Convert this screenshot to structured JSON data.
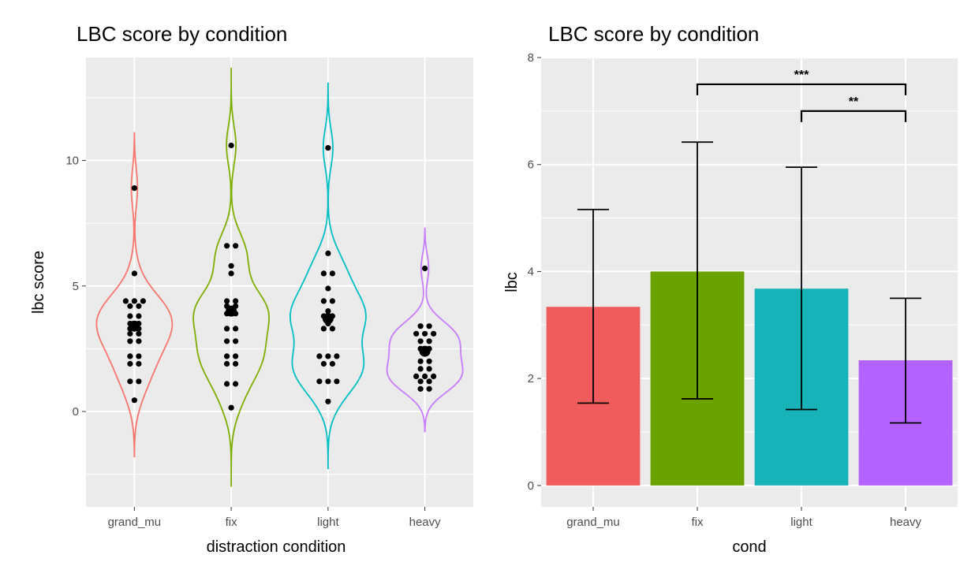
{
  "colors": {
    "grand_mu": "#F8766D",
    "fix": "#7CAE00",
    "light": "#00BFC4",
    "heavy": "#C77CFF",
    "bar_grand_mu": "#F05B5B",
    "bar_fix": "#6AA300",
    "bar_light": "#17B3B8",
    "bar_heavy": "#B462FF",
    "panel": "#EBEBEB",
    "grid": "#ffffff"
  },
  "chart_data": [
    {
      "type": "violin",
      "title": "LBC score by condition",
      "xlabel": "distraction condition",
      "ylabel": "lbc score",
      "categories": [
        "grand_mu",
        "fix",
        "light",
        "heavy"
      ],
      "yticks": [
        0,
        5,
        10
      ],
      "ylim": [
        -3.8,
        14.1
      ],
      "means": [
        3.4,
        4.0,
        3.7,
        2.4
      ],
      "ranges": [
        [
          -1.8,
          11.1
        ],
        [
          -3.0,
          13.7
        ],
        [
          -2.3,
          13.1
        ],
        [
          -0.8,
          7.3
        ]
      ],
      "points": [
        [
          0.45,
          1.2,
          1.2,
          1.9,
          1.9,
          2.2,
          2.2,
          2.8,
          2.8,
          3.1,
          3.1,
          3.3,
          3.3,
          3.5,
          3.5,
          3.8,
          3.8,
          4.2,
          4.2,
          4.4,
          4.4,
          4.4,
          5.5,
          8.9
        ],
        [
          0.15,
          1.1,
          1.1,
          1.9,
          1.9,
          2.2,
          2.2,
          2.8,
          2.8,
          3.3,
          3.3,
          3.9,
          3.9,
          4.2,
          4.2,
          4.4,
          4.4,
          5.5,
          5.8,
          6.6,
          6.6,
          10.6
        ],
        [
          0.4,
          1.2,
          1.2,
          1.2,
          1.9,
          1.9,
          2.2,
          2.2,
          2.2,
          3.3,
          3.3,
          3.5,
          3.8,
          3.8,
          4.0,
          4.4,
          4.4,
          4.9,
          5.5,
          5.5,
          6.3,
          10.5
        ],
        [
          0.9,
          0.9,
          1.2,
          1.2,
          1.4,
          1.4,
          1.4,
          1.7,
          1.7,
          2.0,
          2.0,
          2.3,
          2.5,
          2.5,
          2.8,
          2.8,
          3.1,
          3.1,
          3.1,
          3.4,
          3.4,
          5.7
        ]
      ]
    },
    {
      "type": "bar",
      "title": "LBC score by condition",
      "xlabel": "cond",
      "ylabel": "lbc",
      "categories": [
        "grand_mu",
        "fix",
        "light",
        "heavy"
      ],
      "values": [
        3.34,
        4.0,
        3.68,
        2.34
      ],
      "error_low": [
        1.54,
        1.62,
        1.42,
        1.17
      ],
      "error_high": [
        5.16,
        6.42,
        5.95,
        3.5
      ],
      "yticks": [
        0,
        2,
        4,
        6,
        8
      ],
      "ylim": [
        -0.4,
        8.0
      ],
      "significance": [
        {
          "from": "fix",
          "to": "heavy",
          "label": "***",
          "y": 7.5
        },
        {
          "from": "light",
          "to": "heavy",
          "label": "**",
          "y": 7.0
        }
      ]
    }
  ]
}
